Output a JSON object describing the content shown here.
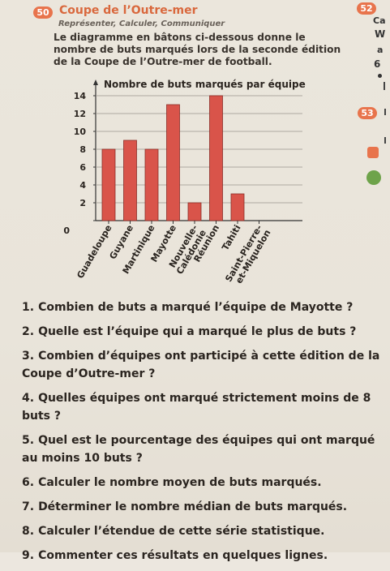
{
  "exercise": {
    "number": "50",
    "title": "Coupe de l’Outre-mer",
    "skills": "Représenter, Calculer, Communiquer",
    "statement": "Le diagramme en bâtons ci-dessous donne le nombre de buts marqués lors de la seconde édition de la Coupe de l’Outre-mer de football."
  },
  "chart_data": {
    "type": "bar",
    "title": "Nombre de buts marqués par équipe",
    "categories": [
      "Guadeloupe",
      "Guyane",
      "Martinique",
      "Mayotte",
      "Nouvelle-Calédonie",
      "Réunion",
      "Tahiti",
      "Saint-Pierre-et-Miquelon"
    ],
    "values": [
      8,
      9,
      8,
      13,
      2,
      14,
      3,
      0
    ],
    "ylim": [
      0,
      14
    ],
    "yticks": [
      0,
      2,
      4,
      6,
      8,
      10,
      12,
      14
    ],
    "bar_color": "#d9544a",
    "grid": true
  },
  "questions": [
    {
      "num": "1.",
      "text": "Combien de buts a marqué l’équipe de Mayotte ?"
    },
    {
      "num": "2.",
      "text": "Quelle est l’équipe qui a marqué le plus de buts ?"
    },
    {
      "num": "3.",
      "text": "Combien d’équipes ont participé à cette édition de la Coupe d’Outre-mer ?"
    },
    {
      "num": "4.",
      "text": "Quelles équipes ont marqué strictement moins de 8 buts ?"
    },
    {
      "num": "5.",
      "text": "Quel est le pourcentage des équipes qui ont marqué au moins 10 buts ?"
    },
    {
      "num": "6.",
      "text": "Calculer le nombre moyen de buts marqués."
    },
    {
      "num": "7.",
      "text": "Déterminer le nombre médian de buts marqués."
    },
    {
      "num": "8.",
      "text": "Calculer l’étendue de cette série statistique."
    },
    {
      "num": "9.",
      "text": "Commenter ces résultats en quelques lignes."
    }
  ],
  "side": {
    "badge_52": "52",
    "text_ca": "Ca",
    "text_w": "W",
    "text_a": "a",
    "text_6": "6",
    "badge_53": "53"
  },
  "colors": {
    "accent": "#e8744c",
    "title": "#d9683d",
    "bar": "#d9544a"
  }
}
